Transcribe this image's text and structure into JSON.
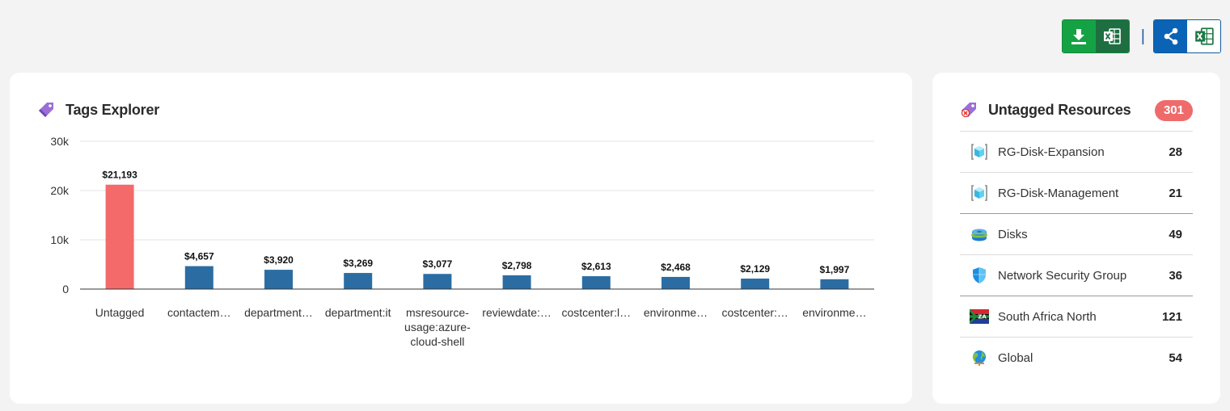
{
  "toolbar": {
    "download_icon": "download-icon",
    "excel_icon": "excel-icon",
    "share_icon": "share-icon",
    "separator": "|"
  },
  "tags_card": {
    "title": "Tags Explorer",
    "icon": "tag-icon"
  },
  "chart_data": {
    "type": "bar",
    "categories": [
      "Untagged",
      "contactem…",
      "department…",
      "department:it",
      "msresource-usage:azure-cloud-shell",
      "reviewdate:…",
      "costcenter:l…",
      "environme…",
      "costcenter:…",
      "environme…"
    ],
    "category_lines": [
      [
        "Untagged"
      ],
      [
        "contactem…"
      ],
      [
        "department…"
      ],
      [
        "department:it"
      ],
      [
        "msresource-",
        "usage:azure-",
        "cloud-shell"
      ],
      [
        "reviewdate:…"
      ],
      [
        "costcenter:l…"
      ],
      [
        "environme…"
      ],
      [
        "costcenter:…"
      ],
      [
        "environme…"
      ]
    ],
    "values": [
      21193,
      4657,
      3920,
      3269,
      3077,
      2798,
      2613,
      2468,
      2129,
      1997
    ],
    "value_labels": [
      "$21,193",
      "$4,657",
      "$3,920",
      "$3,269",
      "$3,077",
      "$2,798",
      "$2,613",
      "$2,468",
      "$2,129",
      "$1,997"
    ],
    "ylim": [
      0,
      30000
    ],
    "yticks": [
      0,
      10000,
      20000,
      30000
    ],
    "ytick_labels": [
      "0",
      "10k",
      "20k",
      "30k"
    ],
    "colors": [
      "#f46a6a",
      "#2b6da3",
      "#2b6da3",
      "#2b6da3",
      "#2b6da3",
      "#2b6da3",
      "#2b6da3",
      "#2b6da3",
      "#2b6da3",
      "#2b6da3"
    ],
    "grid": true,
    "legend": "none"
  },
  "untagged_card": {
    "title": "Untagged Resources",
    "icon": "untagged-tag-icon",
    "count": "301",
    "items": [
      {
        "name": "RG-Disk-Expansion",
        "count": "28",
        "icon": "resource-group-icon"
      },
      {
        "name": "RG-Disk-Management",
        "count": "21",
        "icon": "resource-group-icon"
      },
      {
        "name": "Disks",
        "count": "49",
        "icon": "disk-icon"
      },
      {
        "name": "Network Security Group",
        "count": "36",
        "icon": "shield-icon"
      },
      {
        "name": "South Africa North",
        "count": "121",
        "icon": "south-africa-flag-icon",
        "flag_text": "ZA"
      },
      {
        "name": "Global",
        "count": "54",
        "icon": "globe-icon"
      }
    ]
  }
}
